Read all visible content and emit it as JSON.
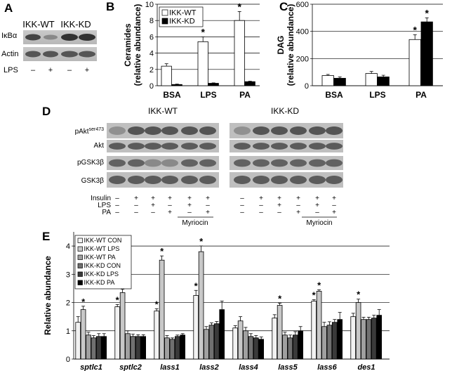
{
  "panel_letters": {
    "a": "A",
    "b": "B",
    "c": "C",
    "d": "D",
    "e": "E"
  },
  "panel_a": {
    "groups": [
      "IKK-WT",
      "IKK-KD"
    ],
    "row_labels": [
      "IκBα",
      "Actin"
    ],
    "lps_label": "LPS",
    "lps_signs": [
      "–",
      "+",
      "–",
      "+"
    ]
  },
  "panel_d": {
    "groups": [
      "IKK-WT",
      "IKK-KD"
    ],
    "row_labels": [
      "pAkt",
      "Akt",
      "pGSK3β",
      "GSK3β"
    ],
    "row_label_sup": "ser473",
    "treatments": [
      {
        "label": "Insulin",
        "signs": [
          "–",
          "+",
          "+",
          "+",
          "+",
          "+",
          "–",
          "+",
          "+",
          "+",
          "+",
          "+"
        ]
      },
      {
        "label": "LPS",
        "signs": [
          "–",
          "–",
          "+",
          "–",
          "+",
          "–",
          "–",
          "–",
          "+",
          "–",
          "+",
          "–"
        ]
      },
      {
        "label": "PA",
        "signs": [
          "–",
          "–",
          "–",
          "+",
          "–",
          "+",
          "–",
          "–",
          "–",
          "+",
          "–",
          "+"
        ]
      }
    ],
    "myriocin_label": "Myriocin"
  },
  "chart_data": [
    {
      "type": "bar",
      "id": "ceramides",
      "categories": [
        "BSA",
        "LPS",
        "PA"
      ],
      "ylabel": "Ceramides\n(relative abundance)",
      "ylim": [
        0,
        10
      ],
      "yticks": [
        0,
        2,
        4,
        6,
        8,
        10
      ],
      "grid": true,
      "legend_position": "top-left",
      "series": [
        {
          "name": "IKK-WT",
          "color": "#ffffff",
          "values": [
            2.4,
            5.4,
            8.0
          ],
          "errors": [
            0.3,
            0.6,
            1.1
          ]
        },
        {
          "name": "IKK-KD",
          "color": "#000000",
          "values": [
            0.15,
            0.3,
            0.5
          ],
          "errors": [
            0.05,
            0.05,
            0.05
          ]
        }
      ],
      "asterisks": [
        {
          "series": 0,
          "category": 1
        },
        {
          "series": 0,
          "category": 2
        }
      ]
    },
    {
      "type": "bar",
      "id": "dag",
      "categories": [
        "BSA",
        "LPS",
        "PA"
      ],
      "ylabel": "DAG\n(relative abundance)",
      "ylim": [
        0,
        600
      ],
      "yticks": [
        0,
        200,
        400,
        600
      ],
      "grid": true,
      "series": [
        {
          "color": "#ffffff",
          "values": [
            75,
            90,
            340
          ],
          "errors": [
            8,
            15,
            35
          ]
        },
        {
          "color": "#000000",
          "values": [
            55,
            65,
            470
          ],
          "errors": [
            10,
            12,
            30
          ]
        }
      ],
      "asterisks": [
        {
          "series": 0,
          "category": 2
        },
        {
          "series": 1,
          "category": 2
        }
      ]
    },
    {
      "type": "bar",
      "id": "genes",
      "categories": [
        "sptlc1",
        "sptlc2",
        "lass1",
        "lass2",
        "lass4",
        "lass5",
        "lass6",
        "des1"
      ],
      "ylabel": "Relative abundance",
      "ylim": [
        0,
        4.5
      ],
      "yticks": [
        0,
        1,
        2,
        3,
        4
      ],
      "grid": true,
      "legend_position": "top-left",
      "series": [
        {
          "name": "IKK-WT CON",
          "color": "#f2f2f2",
          "values": [
            1.3,
            1.85,
            1.7,
            2.25,
            1.1,
            1.45,
            2.05,
            1.5
          ],
          "errors": [
            0.2,
            0.08,
            0.08,
            0.18,
            0.08,
            0.12,
            0.05,
            0.12
          ]
        },
        {
          "name": "IKK-WT LPS",
          "color": "#c8c8c8",
          "values": [
            1.75,
            2.35,
            3.5,
            3.8,
            1.35,
            1.9,
            2.4,
            2.0
          ],
          "errors": [
            0.12,
            0.12,
            0.15,
            0.2,
            0.15,
            0.08,
            0.05,
            0.12
          ]
        },
        {
          "name": "IKK-WT PA",
          "color": "#a0a0a0",
          "values": [
            0.85,
            0.9,
            0.75,
            1.05,
            1.0,
            0.85,
            1.15,
            1.4
          ],
          "errors": [
            0.1,
            0.1,
            0.08,
            0.1,
            0.12,
            0.1,
            0.15,
            0.08
          ]
        },
        {
          "name": "IKK-KD CON",
          "color": "#707070",
          "values": [
            0.75,
            0.8,
            0.7,
            1.2,
            0.8,
            0.75,
            1.2,
            1.4
          ],
          "errors": [
            0.08,
            0.08,
            0.05,
            0.08,
            0.1,
            0.1,
            0.12,
            0.08
          ]
        },
        {
          "name": "IKK-KD LPS",
          "color": "#3a3a3a",
          "values": [
            0.8,
            0.8,
            0.8,
            1.25,
            0.75,
            0.85,
            1.3,
            1.45
          ],
          "errors": [
            0.1,
            0.06,
            0.05,
            0.08,
            0.08,
            0.12,
            0.1,
            0.1
          ]
        },
        {
          "name": "IKK-KD PA",
          "color": "#000000",
          "values": [
            0.8,
            0.8,
            0.85,
            1.75,
            0.7,
            1.0,
            1.4,
            1.55
          ],
          "errors": [
            0.1,
            0.06,
            0.05,
            0.3,
            0.08,
            0.15,
            0.25,
            0.2
          ]
        }
      ],
      "asterisks": [
        {
          "series": 1,
          "category": 0
        },
        {
          "series": 0,
          "category": 1
        },
        {
          "series": 1,
          "category": 1
        },
        {
          "series": 0,
          "category": 2
        },
        {
          "series": 1,
          "category": 2
        },
        {
          "series": 0,
          "category": 3
        },
        {
          "series": 1,
          "category": 3
        },
        {
          "series": 1,
          "category": 5
        },
        {
          "series": 0,
          "category": 6
        },
        {
          "series": 1,
          "category": 6
        },
        {
          "series": 1,
          "category": 7
        }
      ]
    }
  ]
}
